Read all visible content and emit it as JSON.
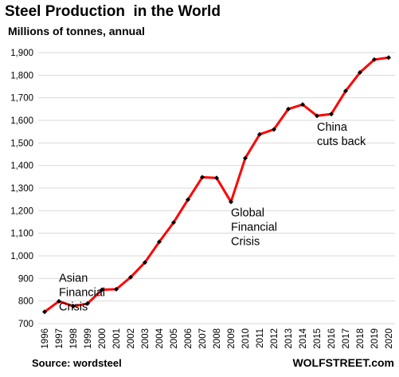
{
  "chart_data": {
    "type": "line",
    "title": "Steel Production  in the World",
    "subtitle": "Millions of tonnes, annual",
    "x": [
      "1996",
      "1997",
      "1998",
      "1999",
      "2000",
      "2001",
      "2002",
      "2003",
      "2004",
      "2005",
      "2006",
      "2007",
      "2008",
      "2009",
      "2010",
      "2011",
      "2012",
      "2013",
      "2014",
      "2015",
      "2016",
      "2017",
      "2018",
      "2019",
      "2020"
    ],
    "values": [
      752,
      799,
      777,
      789,
      850,
      852,
      905,
      971,
      1062,
      1148,
      1249,
      1348,
      1345,
      1239,
      1433,
      1538,
      1560,
      1650,
      1670,
      1620,
      1628,
      1730,
      1812,
      1869,
      1878
    ],
    "ylim": [
      700,
      1900
    ],
    "yticks": [
      "700",
      "800",
      "900",
      "1,000",
      "1,100",
      "1,200",
      "1,300",
      "1,400",
      "1,500",
      "1,600",
      "1,700",
      "1,800",
      "1,900"
    ],
    "ytick_values": [
      700,
      800,
      900,
      1000,
      1100,
      1200,
      1300,
      1400,
      1500,
      1600,
      1700,
      1800,
      1900
    ],
    "grid": "horizontal",
    "line_color": "#ff0000",
    "marker_color": "#000000",
    "grid_color": "#d9d9d9",
    "annotations": [
      {
        "lines": [
          "Asian",
          "Financial",
          "Crisis"
        ],
        "year": "1997",
        "anchor_value": 885
      },
      {
        "lines": [
          "Global",
          "Financial",
          "Crisis"
        ],
        "year": "2009",
        "anchor_value": 1175
      },
      {
        "lines": [
          "China",
          "cuts back"
        ],
        "year": "2015",
        "anchor_value": 1555
      }
    ]
  },
  "footer": {
    "source": "Source: wordsteel",
    "credit": "WOLFSTREET.com"
  }
}
